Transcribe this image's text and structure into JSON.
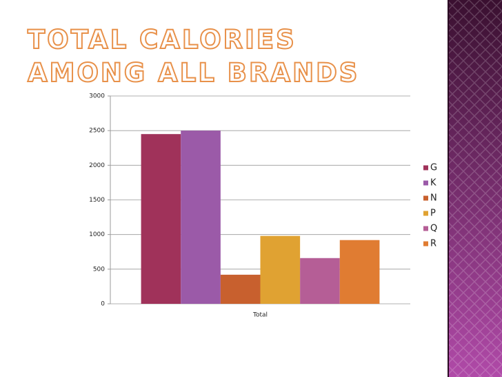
{
  "chart_data": {
    "type": "bar",
    "title": "Total Calories Among All Brands",
    "categories": [
      "Total"
    ],
    "series": [
      {
        "name": "G",
        "color": "#a0325a",
        "values": [
          2450
        ]
      },
      {
        "name": "K",
        "color": "#9b5aa8",
        "values": [
          2500
        ]
      },
      {
        "name": "N",
        "color": "#c8602e",
        "values": [
          420
        ]
      },
      {
        "name": "P",
        "color": "#e0a232",
        "values": [
          980
        ]
      },
      {
        "name": "Q",
        "color": "#b55e96",
        "values": [
          660
        ]
      },
      {
        "name": "R",
        "color": "#e07c32",
        "values": [
          920
        ]
      }
    ],
    "ylim": [
      0,
      3000
    ],
    "yticks": [
      0,
      500,
      1000,
      1500,
      2000,
      2500,
      3000
    ],
    "grid": true,
    "legend": "right"
  }
}
